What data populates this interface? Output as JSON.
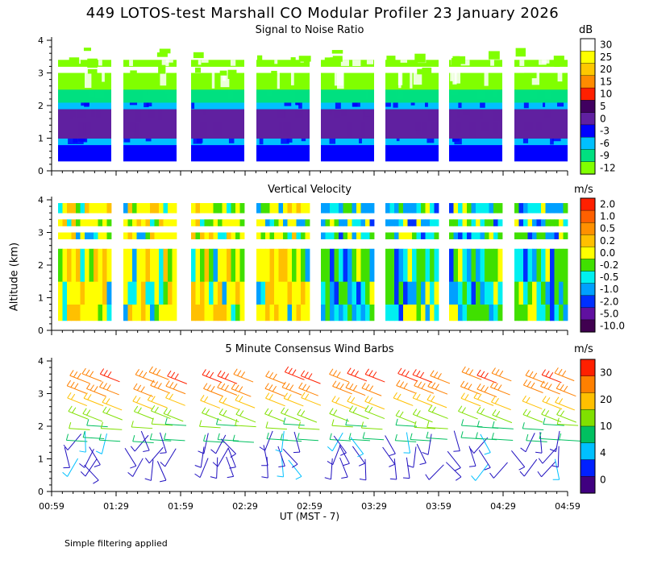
{
  "title": "449 LOTOS-test Marshall CO Modular Profiler 23 January 2026",
  "ylabel": "Altitude (km)",
  "xlabel": "UT  (MST - 7)",
  "footnote": "Simple filtering applied",
  "chart_data": [
    {
      "type": "heatmap",
      "title": "Signal to Noise Ratio",
      "unit": "dB",
      "ylim": [
        0,
        4
      ],
      "y_ticks": [
        "0",
        "1",
        "2",
        "3",
        "4"
      ],
      "x_ticks": [
        "00:59",
        "01:29",
        "01:59",
        "02:29",
        "02:59",
        "03:29",
        "03:59",
        "04:29",
        "04:59"
      ],
      "colorbar": {
        "labels": [
          "30",
          "25",
          "20",
          "15",
          "10",
          "5",
          "0",
          "-3",
          "-6",
          "-9",
          "-12"
        ],
        "colors": [
          "#ffffff",
          "#ffff00",
          "#ffc800",
          "#ff8c00",
          "#ff2000",
          "#400060",
          "#6020a0",
          "#0000ff",
          "#00c0ff",
          "#00e080",
          "#80ff00"
        ]
      },
      "segments_hours": [
        [
          0.0,
          0.5
        ],
        [
          0.1,
          0.2
        ]
      ],
      "time_blocks_hours": [
        0.0,
        0.5,
        1.0,
        1.5,
        2.0,
        2.5,
        3.0,
        3.5
      ],
      "layers": [
        {
          "bottom_km": 0.3,
          "top_km": 0.8,
          "value_db": -3
        },
        {
          "bottom_km": 0.8,
          "top_km": 1.0,
          "value_db": -6
        },
        {
          "bottom_km": 1.0,
          "top_km": 1.5,
          "value_db": 2
        },
        {
          "bottom_km": 1.5,
          "top_km": 1.9,
          "value_db": 0
        },
        {
          "bottom_km": 1.9,
          "top_km": 2.1,
          "value_db": -6
        },
        {
          "bottom_km": 2.1,
          "top_km": 2.5,
          "value_db": -9
        },
        {
          "bottom_km": 2.5,
          "top_km": 3.0,
          "value_db": -12
        },
        {
          "bottom_km": 3.2,
          "top_km": 3.4,
          "value_db": -12
        }
      ]
    },
    {
      "type": "heatmap",
      "title": "Vertical Velocity",
      "unit": "m/s",
      "ylim": [
        0,
        4
      ],
      "y_ticks": [
        "0",
        "1",
        "2",
        "3",
        "4"
      ],
      "colorbar": {
        "labels": [
          "2.0",
          "1.0",
          "0.5",
          "0.2",
          "0.0",
          "-0.2",
          "-0.5",
          "-1.0",
          "-2.0",
          "-5.0",
          "-10.0"
        ],
        "colors": [
          "#ff2000",
          "#ff6000",
          "#ff9000",
          "#ffc000",
          "#ffff00",
          "#40e000",
          "#00f0f0",
          "#00a0ff",
          "#0030ff",
          "#6010a0",
          "#400050"
        ]
      },
      "layers": [
        {
          "bottom_km": 0.3,
          "top_km": 0.8,
          "value_ms": 0.0
        },
        {
          "bottom_km": 0.8,
          "top_km": 1.5,
          "value_ms": -0.2
        },
        {
          "bottom_km": 1.5,
          "top_km": 2.5,
          "value_ms": 0.2
        },
        {
          "bottom_km": 2.8,
          "top_km": 3.0,
          "value_ms": 0.0
        },
        {
          "bottom_km": 3.2,
          "top_km": 3.4,
          "value_ms": -0.5
        },
        {
          "bottom_km": 3.6,
          "top_km": 3.9,
          "value_ms": -1.0
        }
      ]
    },
    {
      "type": "barbs",
      "title": "5 Minute Consensus Wind Barbs",
      "unit": "m/s",
      "ylim": [
        0,
        4
      ],
      "y_ticks": [
        "0",
        "1",
        "2",
        "3",
        "4"
      ],
      "colorbar": {
        "labels": [
          "30",
          "20",
          "10",
          "4",
          "0"
        ],
        "colors": [
          "#ff2000",
          "#ff8000",
          "#ffc000",
          "#80e000",
          "#00c060",
          "#00c0ff",
          "#0020ff",
          "#400080"
        ]
      },
      "levels": [
        {
          "height_km": 0.4,
          "speed_ms": 3,
          "direction": "variable"
        },
        {
          "height_km": 0.8,
          "speed_ms": 2,
          "direction": "variable"
        },
        {
          "height_km": 1.2,
          "speed_ms": 3,
          "direction": "variable"
        },
        {
          "height_km": 1.6,
          "speed_ms": 8,
          "direction": "west"
        },
        {
          "height_km": 2.0,
          "speed_ms": 10,
          "direction": "west"
        },
        {
          "height_km": 2.4,
          "speed_ms": 14,
          "direction": "northwest"
        },
        {
          "height_km": 2.8,
          "speed_ms": 18,
          "direction": "northwest"
        },
        {
          "height_km": 3.2,
          "speed_ms": 22,
          "direction": "northwest"
        },
        {
          "height_km": 3.6,
          "speed_ms": 26,
          "direction": "northwest"
        }
      ]
    }
  ]
}
